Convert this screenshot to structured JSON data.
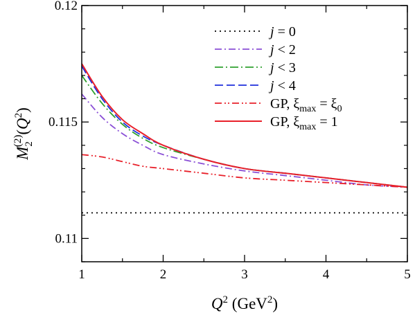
{
  "chart_data": {
    "type": "line",
    "xlabel": {
      "main": "Q",
      "sup": "2",
      "unit_pre": "(GeV",
      "unit_sup": "2",
      "unit_post": ")"
    },
    "ylabel": {
      "main": "M",
      "sub": "2",
      "sup": "(2)",
      "arg_pre": "(Q",
      "arg_sup": "2",
      "arg_post": ")"
    },
    "xlim": [
      1,
      5
    ],
    "ylim": [
      0.109,
      0.12
    ],
    "xticks": [
      {
        "value": 1,
        "label": "1"
      },
      {
        "value": 2,
        "label": "2"
      },
      {
        "value": 3,
        "label": "3"
      },
      {
        "value": 4,
        "label": "4"
      },
      {
        "value": 5,
        "label": "5"
      }
    ],
    "yticks": [
      {
        "value": 0.11,
        "label": "0.11"
      },
      {
        "value": 0.115,
        "label": "0.115"
      },
      {
        "value": 0.12,
        "label": "0.12"
      }
    ],
    "x": [
      1.0,
      1.25,
      1.5,
      1.75,
      2.0,
      2.5,
      3.0,
      3.5,
      4.0,
      4.5,
      5.0
    ],
    "legend_position": "top-right",
    "series": [
      {
        "name": "j = 0",
        "legend_parts": [
          {
            "t": "j",
            "i": true
          },
          {
            "t": " = 0"
          }
        ],
        "color": "#000000",
        "dash": "2,5",
        "values": [
          0.1111,
          0.1111,
          0.1111,
          0.1111,
          0.1111,
          0.1111,
          0.1111,
          0.1111,
          0.1111,
          0.1111,
          0.1111
        ]
      },
      {
        "name": "j < 2",
        "legend_parts": [
          {
            "t": "j",
            "i": true
          },
          {
            "t": " < 2"
          }
        ],
        "color": "#8a4fd6",
        "dash": "10,4,2,4",
        "values": [
          0.1162,
          0.1152,
          0.1145,
          0.114,
          0.1136,
          0.1132,
          0.1129,
          0.1127,
          0.1125,
          0.1123,
          0.1122
        ]
      },
      {
        "name": "j < 3",
        "legend_parts": [
          {
            "t": "j",
            "i": true
          },
          {
            "t": " < 3"
          }
        ],
        "color": "#2ea02e",
        "dash": "12,4,2,4",
        "values": [
          0.117,
          0.1158,
          0.1149,
          0.1143,
          0.1139,
          0.1134,
          0.113,
          0.1128,
          0.1126,
          0.1124,
          0.1122
        ]
      },
      {
        "name": "j < 4",
        "legend_parts": [
          {
            "t": "j",
            "i": true
          },
          {
            "t": " < 4"
          }
        ],
        "color": "#1f2fdc",
        "dash": "12,5",
        "values": [
          0.1174,
          0.116,
          0.115,
          0.1144,
          0.114,
          0.1134,
          0.113,
          0.1128,
          0.1126,
          0.1124,
          0.1122
        ]
      },
      {
        "name": "GP, ξmax = ξ0",
        "legend_parts": [
          {
            "t": "GP,  "
          },
          {
            "t": "ξ"
          },
          {
            "t": "max",
            "sub": true
          },
          {
            "t": " = "
          },
          {
            "t": "ξ"
          },
          {
            "t": "0",
            "sub": true
          }
        ],
        "color": "#e8202a",
        "dash": "10,4,2,3,2,4",
        "values": [
          0.1136,
          0.1135,
          0.1133,
          0.1131,
          0.113,
          0.1128,
          0.1126,
          0.1125,
          0.1124,
          0.1123,
          0.1122
        ]
      },
      {
        "name": "GP, ξmax = 1",
        "legend_parts": [
          {
            "t": "GP,  "
          },
          {
            "t": "ξ"
          },
          {
            "t": "max",
            "sub": true
          },
          {
            "t": " = 1"
          }
        ],
        "color": "#e8202a",
        "dash": "",
        "values": [
          0.1175,
          0.1161,
          0.1151,
          0.1145,
          0.114,
          0.1134,
          0.113,
          0.1128,
          0.1126,
          0.1124,
          0.1122
        ]
      }
    ]
  }
}
